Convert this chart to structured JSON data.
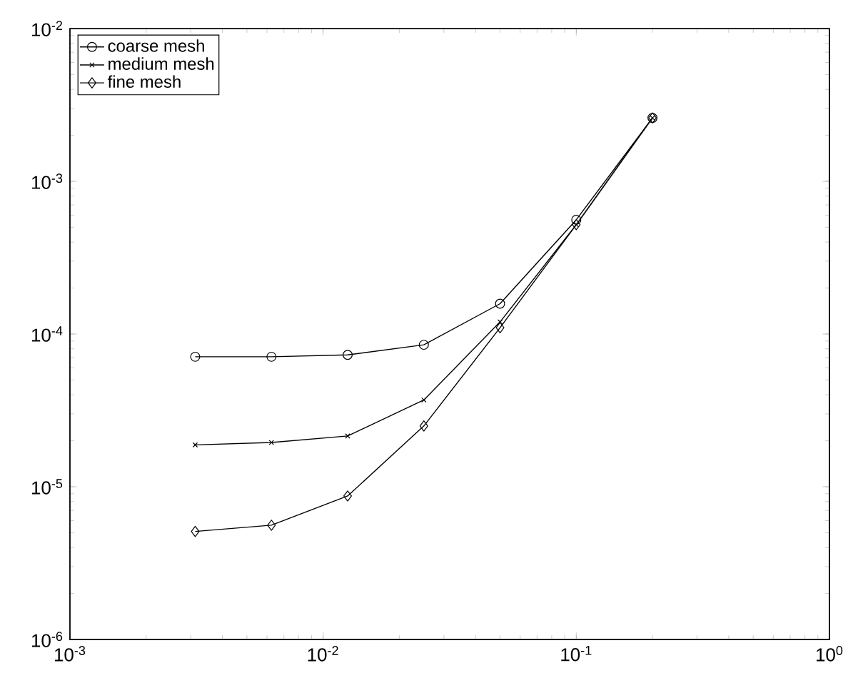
{
  "chart_data": {
    "type": "line",
    "log": "xy",
    "legend": "top left",
    "grid": false,
    "x": [
      0.003125,
      0.00625,
      0.0125,
      0.025,
      0.05,
      0.1,
      0.2
    ],
    "series": [
      {
        "name": "coarse mesh",
        "color": "#000000",
        "marker": "circle",
        "values": [
          7.1e-05,
          7.1e-05,
          7.3e-05,
          8.5e-05,
          0.000158,
          0.00056,
          0.0026
        ]
      },
      {
        "name": "medium mesh",
        "color": "#000000",
        "marker": "cross",
        "values": [
          1.88e-05,
          1.95e-05,
          2.15e-05,
          3.7e-05,
          0.00012,
          0.00052,
          0.0026
        ]
      },
      {
        "name": "fine mesh",
        "color": "#000000",
        "marker": "diamond",
        "values": [
          5.1e-06,
          5.6e-06,
          8.7e-06,
          2.5e-05,
          0.00011,
          0.00052,
          0.0026
        ]
      }
    ],
    "xlim": [
      0.001,
      1
    ],
    "ylim": [
      1e-06,
      0.01
    ],
    "xticks": [
      {
        "value": 0.001,
        "label": "10$^{-3}$"
      },
      {
        "value": 0.01,
        "label": "10$^{-2}$"
      },
      {
        "value": 0.1,
        "label": "10$^{-1}$"
      },
      {
        "value": 1,
        "label": "10$^{0}$"
      }
    ],
    "yticks": [
      {
        "value": 1e-06,
        "label": "10$^{-6}$"
      },
      {
        "value": 1e-05,
        "label": "10$^{-5}$"
      },
      {
        "value": 0.0001,
        "label": "10$^{-4}$"
      },
      {
        "value": 0.001,
        "label": "10$^{-3}$"
      },
      {
        "value": 0.01,
        "label": "10$^{-2}$"
      }
    ]
  }
}
